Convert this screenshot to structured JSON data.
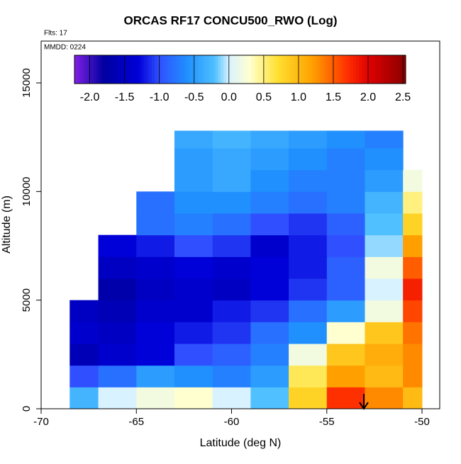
{
  "chart_data": {
    "type": "heatmap",
    "title": "ORCAS RF17 CONCU500_RWO (Log)",
    "annotations": [
      "Flts: 17",
      "MMDD: 0224"
    ],
    "xlabel": "Latitude (deg N)",
    "ylabel": "Altitude (m)",
    "xlim": [
      -70,
      -49.07
    ],
    "ylim": [
      0,
      16924
    ],
    "xticks": [
      -70,
      -65,
      -60,
      -55,
      -50
    ],
    "yticks": [
      0,
      5000,
      10000,
      15000
    ],
    "zlim": [
      -2.22,
      2.54
    ],
    "zticks": [
      {
        "value": -2,
        "label": "-2.0"
      },
      -1.5,
      {
        "value": -1,
        "label": "-1.0"
      },
      -0.5,
      {
        "value": 0,
        "label": "0.0"
      },
      0.5,
      {
        "value": 1,
        "label": "1.0"
      },
      1.5,
      {
        "value": 2,
        "label": "2.0"
      },
      2.5
    ],
    "colorscale": [
      [
        -2.2,
        "#7b1fe0"
      ],
      [
        -1.8,
        "#0000a0"
      ],
      [
        -1.3,
        "#0000d8"
      ],
      [
        -1.0,
        "#3050ff"
      ],
      [
        -0.6,
        "#2090ff"
      ],
      [
        -0.2,
        "#50c0ff"
      ],
      [
        0,
        "#d8f2ff"
      ],
      [
        0.3,
        "#ffffd0"
      ],
      [
        0.7,
        "#ffe030"
      ],
      [
        1.2,
        "#ffa000"
      ],
      [
        1.7,
        "#ff3000"
      ],
      [
        2.0,
        "#e00000"
      ],
      [
        2.5,
        "#900000"
      ]
    ],
    "x_bins": [
      -68.5,
      -67,
      -65,
      -63,
      -61,
      -59,
      -57,
      -55,
      -53,
      -51,
      -50
    ],
    "y_bins": [
      0,
      1000,
      2000,
      3000,
      4000,
      5000,
      6000,
      7000,
      8000,
      9000,
      10000,
      11000,
      12000,
      12800
    ],
    "z": [
      [
        -0.3,
        0.0,
        0.2,
        0.3,
        0.0,
        -0.2,
        0.8,
        1.7,
        1.3,
        1.0
      ],
      [
        -1.0,
        -0.8,
        -0.5,
        -0.6,
        -0.7,
        -0.5,
        0.6,
        1.2,
        1.0,
        1.3
      ],
      [
        -1.6,
        -1.4,
        -1.3,
        -1.0,
        -0.9,
        -0.7,
        0.2,
        0.9,
        1.1,
        1.3
      ],
      [
        -1.4,
        -1.5,
        -1.3,
        -1.2,
        -1.1,
        -0.8,
        -0.6,
        0.3,
        0.9,
        1.4
      ],
      [
        -1.5,
        -1.6,
        -1.4,
        -1.4,
        -1.2,
        -1.1,
        -0.8,
        -0.5,
        0.2,
        1.6
      ],
      [
        null,
        -1.7,
        -1.5,
        -1.4,
        -1.5,
        -1.3,
        -1.1,
        -0.9,
        0.0,
        1.8
      ],
      [
        null,
        -1.5,
        -1.4,
        -1.3,
        -1.4,
        -1.3,
        -1.2,
        -0.9,
        0.2,
        1.5
      ],
      [
        null,
        -1.3,
        -1.2,
        -1.0,
        -1.1,
        -1.4,
        -1.2,
        -1.0,
        -0.1,
        1.2
      ],
      [
        null,
        null,
        -0.8,
        -0.7,
        -0.8,
        -1.0,
        -1.1,
        -0.9,
        -0.2,
        0.8
      ],
      [
        null,
        null,
        -0.8,
        -0.6,
        -0.6,
        -0.7,
        -0.8,
        -0.7,
        -0.3,
        0.5
      ],
      [
        null,
        null,
        null,
        -0.5,
        -0.4,
        -0.6,
        -0.7,
        -0.7,
        -0.5,
        0.2
      ],
      [
        null,
        null,
        null,
        -0.5,
        -0.4,
        -0.5,
        -0.6,
        -0.7,
        -0.6,
        null
      ],
      [
        null,
        null,
        null,
        -0.4,
        -0.3,
        -0.4,
        -0.5,
        -0.6,
        -0.7,
        null
      ]
    ]
  }
}
